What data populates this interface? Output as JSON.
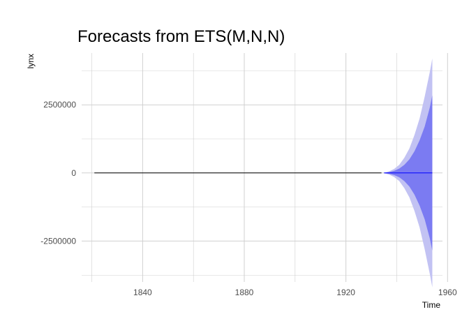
{
  "chart_data": {
    "type": "line",
    "title": "Forecasts from ETS(M,N,N)",
    "xlabel": "Time",
    "ylabel": "lynx",
    "xlim": [
      1816,
      1958
    ],
    "ylim": [
      -4000000,
      4400000
    ],
    "x_ticks": [
      1840,
      1880,
      1920,
      1960
    ],
    "x_tick_labels": [
      "1840",
      "1880",
      "1920",
      "1960"
    ],
    "y_ticks": [
      -2500000,
      0,
      2500000
    ],
    "y_tick_labels": [
      "-2500000",
      "0",
      "2500000"
    ],
    "grid": true,
    "legend": "none",
    "colors": {
      "history": "#000000",
      "point_forecast": "#0000ff",
      "band_80": "#7b7bf2",
      "band_95": "#c2c2f3",
      "grid": "#d0d0d0"
    },
    "history": {
      "x": [
        1821,
        1934
      ],
      "y": [
        0,
        0
      ]
    },
    "forecast": {
      "x": [
        1935,
        1937,
        1939,
        1941,
        1943,
        1945,
        1947,
        1949,
        1951,
        1953,
        1954
      ],
      "mean": [
        0,
        0,
        0,
        0,
        0,
        0,
        0,
        0,
        0,
        0,
        0
      ],
      "lo80": [
        -5000,
        -30000,
        -80000,
        -160000,
        -300000,
        -500000,
        -800000,
        -1200000,
        -1700000,
        -2400000,
        -2850000
      ],
      "hi80": [
        5000,
        30000,
        80000,
        160000,
        300000,
        500000,
        800000,
        1200000,
        1700000,
        2400000,
        2850000
      ],
      "lo95": [
        -10000,
        -60000,
        -150000,
        -300000,
        -560000,
        -900000,
        -1400000,
        -2000000,
        -2800000,
        -3700000,
        -4200000
      ],
      "hi95": [
        10000,
        60000,
        150000,
        300000,
        560000,
        900000,
        1400000,
        2000000,
        2800000,
        3700000,
        4200000
      ]
    }
  }
}
